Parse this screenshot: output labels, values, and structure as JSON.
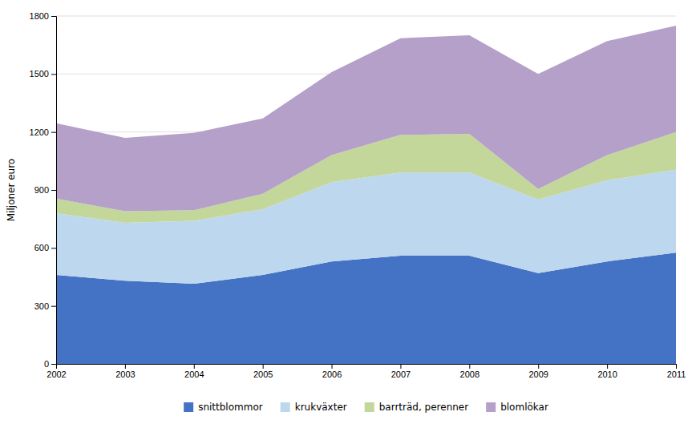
{
  "chart_data": {
    "type": "area",
    "stacked": true,
    "ylabel": "Miljoner euro",
    "x": [
      2002,
      2003,
      2004,
      2005,
      2006,
      2007,
      2008,
      2009,
      2010,
      2011
    ],
    "series": [
      {
        "name": "snittblommor",
        "color": "#4472c4",
        "values": [
          460,
          430,
          415,
          460,
          530,
          560,
          560,
          470,
          530,
          575
        ]
      },
      {
        "name": "krukväxter",
        "color": "#bdd7ee",
        "values": [
          320,
          300,
          325,
          340,
          410,
          430,
          430,
          380,
          420,
          430
        ]
      },
      {
        "name": "barrträd, perenner",
        "color": "#c4d79b",
        "values": [
          75,
          60,
          55,
          80,
          140,
          195,
          200,
          55,
          130,
          195
        ]
      },
      {
        "name": "blomlökar",
        "color": "#b4a0c8",
        "values": [
          390,
          380,
          400,
          390,
          430,
          500,
          510,
          595,
          590,
          550
        ]
      }
    ],
    "xlim": [
      2002,
      2011
    ],
    "xticks": [
      2002,
      2003,
      2004,
      2005,
      2006,
      2007,
      2008,
      2009,
      2010,
      2011
    ],
    "ylim": [
      0,
      1800
    ],
    "yticks": [
      0,
      300,
      600,
      900,
      1200,
      1500,
      1800
    ],
    "grid": true,
    "legend": "bottom"
  }
}
